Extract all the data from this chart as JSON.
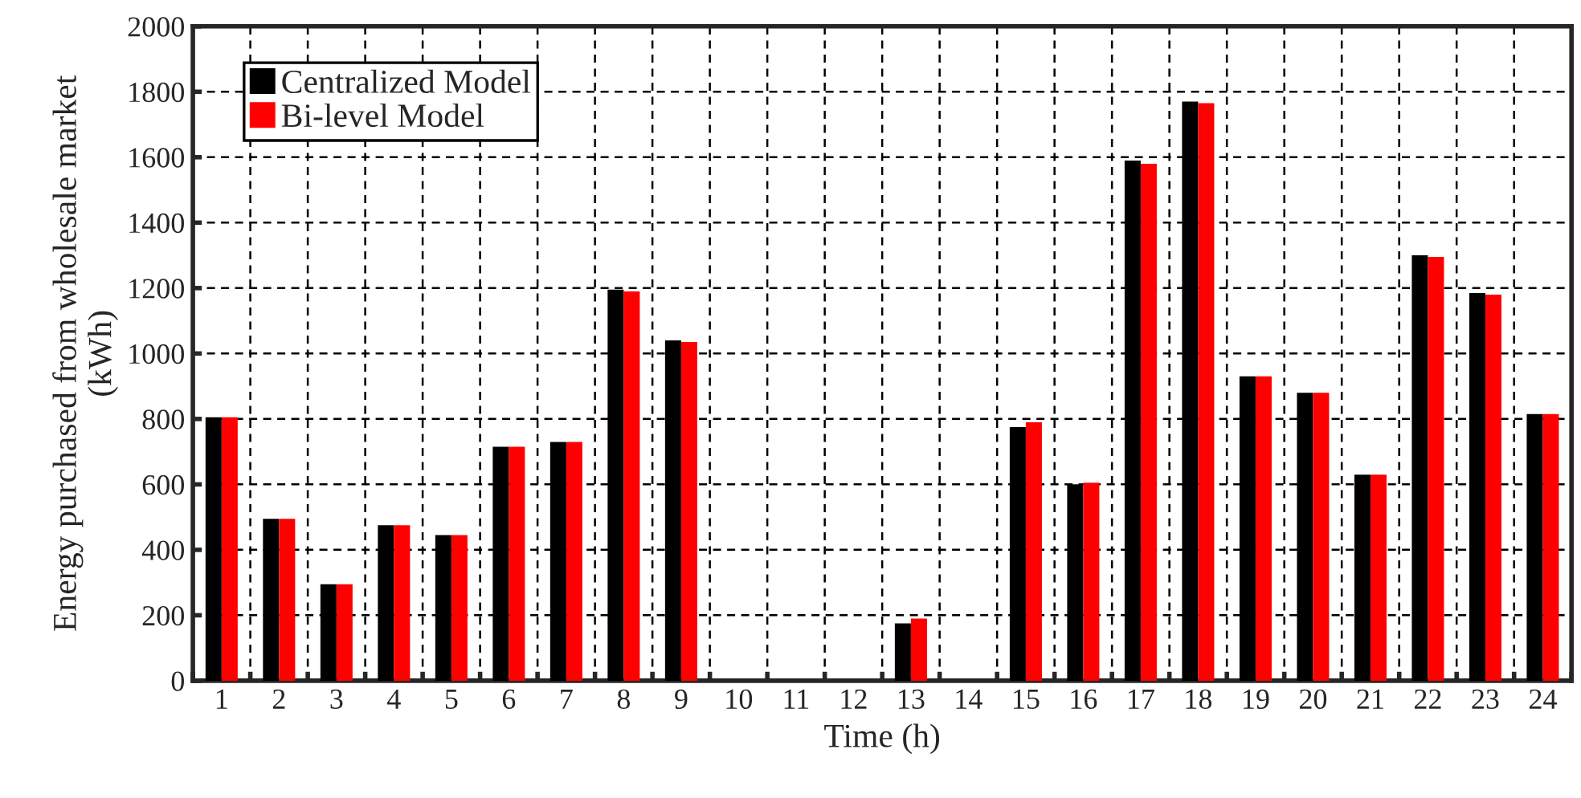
{
  "chart_data": {
    "type": "bar",
    "xlabel": "Time (h)",
    "ylabel": "Energy purchased from wholesale market\n(kWh)",
    "categories": [
      "1",
      "2",
      "3",
      "4",
      "5",
      "6",
      "7",
      "8",
      "9",
      "10",
      "11",
      "12",
      "13",
      "14",
      "15",
      "16",
      "17",
      "18",
      "19",
      "20",
      "21",
      "22",
      "23",
      "24"
    ],
    "series": [
      {
        "name": "Centralized Model",
        "color": "#000000",
        "values": [
          805,
          495,
          295,
          475,
          445,
          715,
          730,
          1195,
          1040,
          0,
          0,
          0,
          175,
          0,
          775,
          600,
          1590,
          1770,
          930,
          880,
          630,
          1300,
          1185,
          815
        ]
      },
      {
        "name": "Bi-level Model",
        "color": "#ff0000",
        "values": [
          805,
          495,
          295,
          475,
          445,
          715,
          730,
          1190,
          1035,
          0,
          0,
          0,
          190,
          0,
          790,
          605,
          1580,
          1765,
          930,
          880,
          630,
          1295,
          1180,
          815
        ]
      }
    ],
    "ylim": [
      0,
      2000
    ],
    "yticks": [
      0,
      200,
      400,
      600,
      800,
      1000,
      1200,
      1400,
      1600,
      1800,
      2000
    ],
    "grid": true,
    "legend": "top left"
  }
}
